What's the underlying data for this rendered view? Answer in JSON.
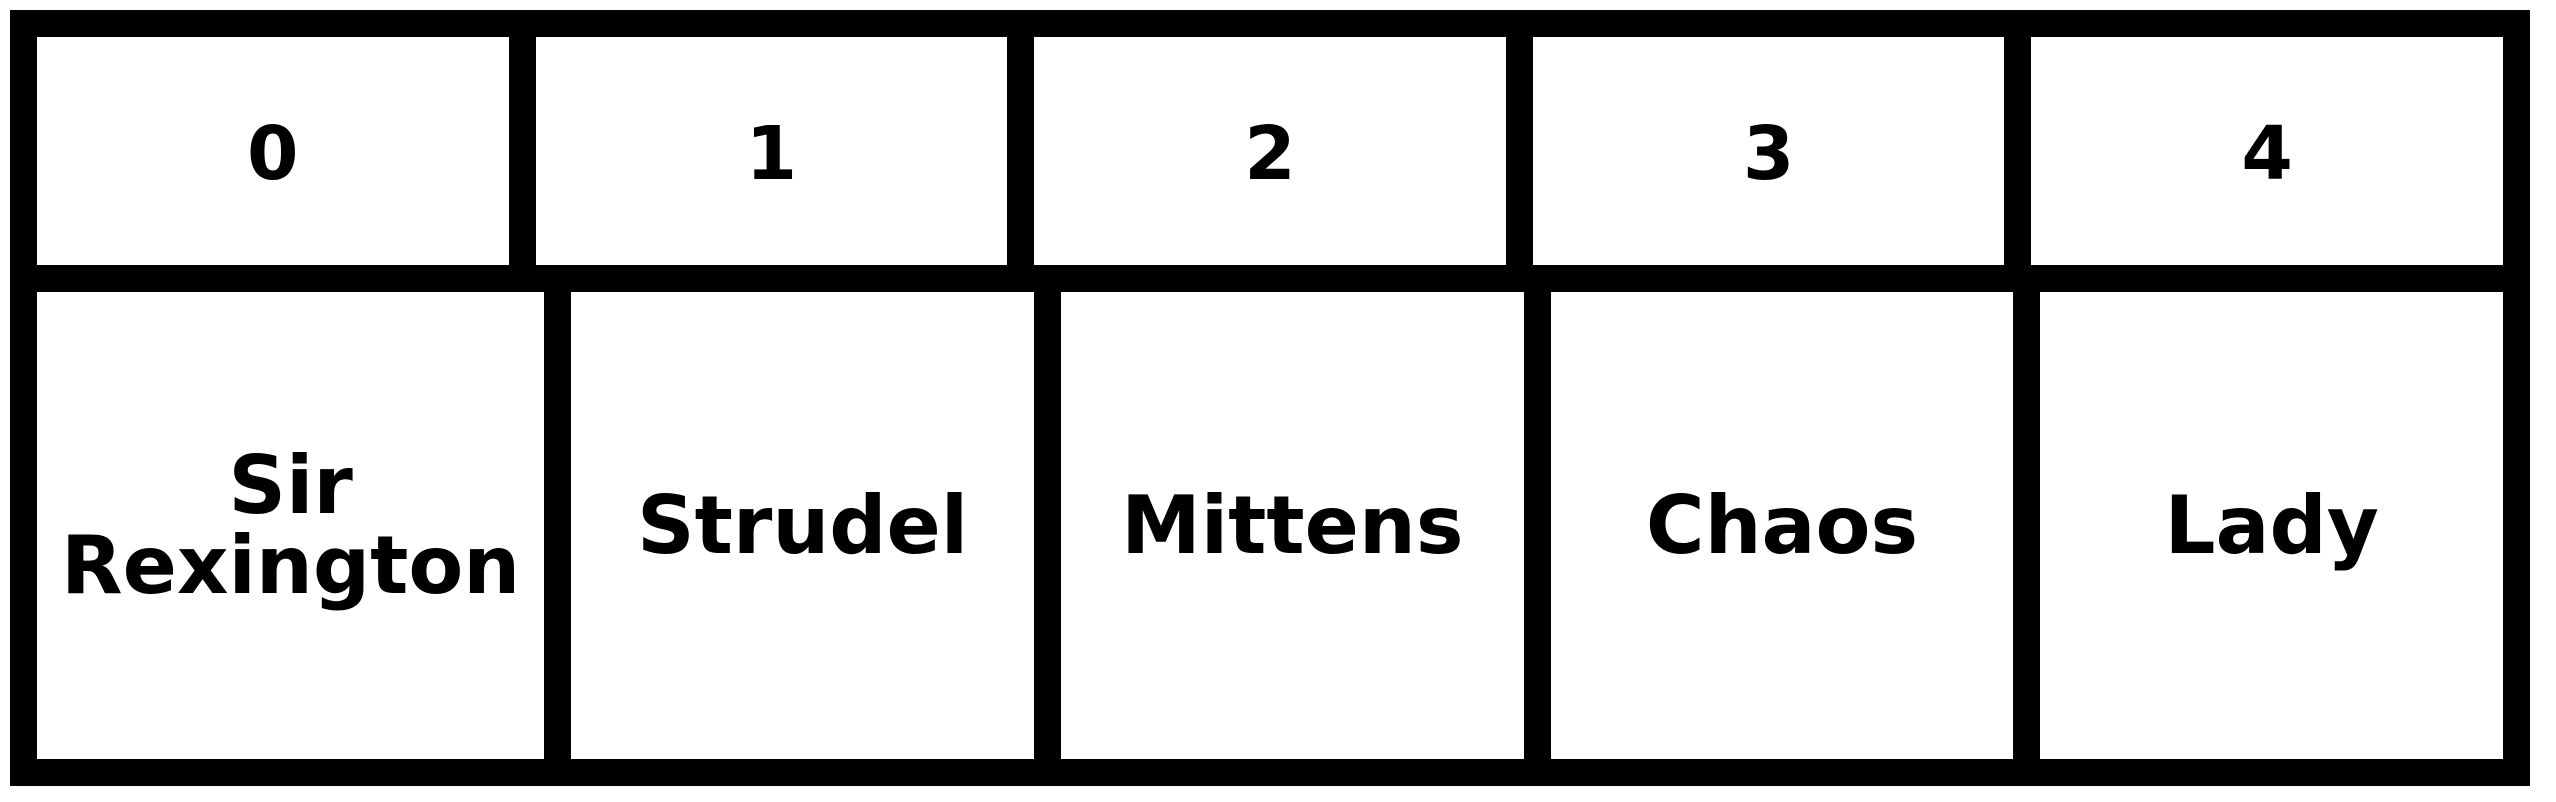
{
  "array": {
    "indices": [
      "0",
      "1",
      "2",
      "3",
      "4"
    ],
    "values": [
      "Sir Rexington",
      "Strudel",
      "Mittens",
      "Chaos",
      "Lady"
    ]
  }
}
